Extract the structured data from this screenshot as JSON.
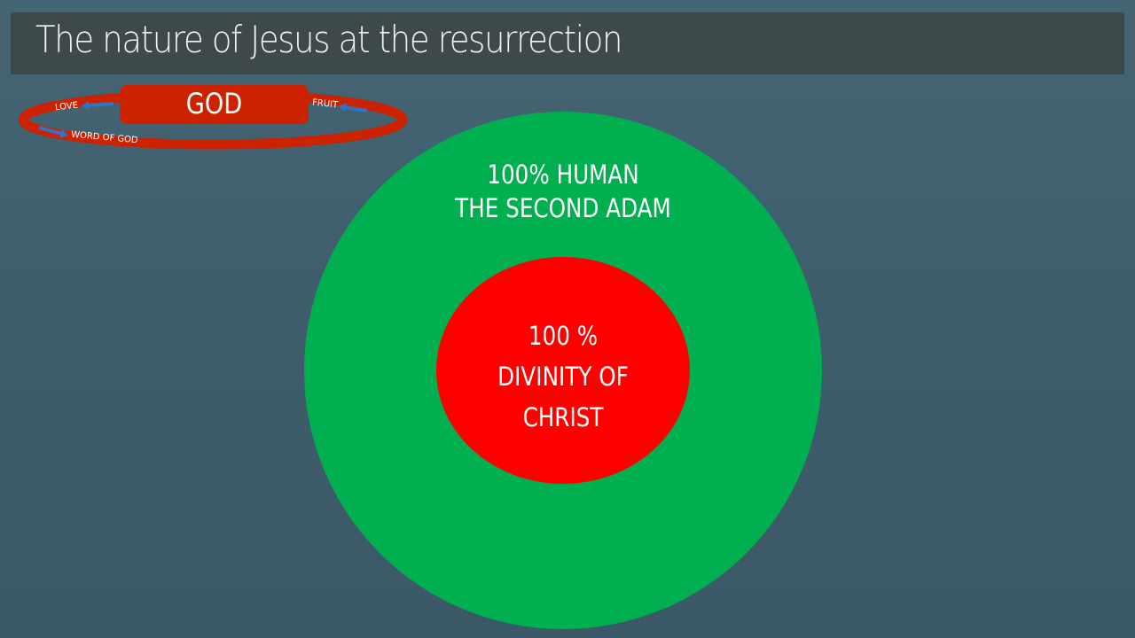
{
  "title": "The nature of Jesus at the resurrection",
  "cycle": {
    "center": "GOD",
    "left_top": "LOVE",
    "left_bottom": "WORD OF GOD",
    "right": "FRUIT"
  },
  "outer_circle": {
    "line1": "100% HUMAN",
    "line2": "THE SECOND ADAM"
  },
  "inner_circle": {
    "line1": "100 %",
    "line2": "DIVINITY OF",
    "line3": "CHRIST"
  },
  "colors": {
    "background": "#3f5e6d",
    "outer": "#00b050",
    "inner": "#ff0000",
    "ring": "#cc2200",
    "arrow": "#2e75c8"
  }
}
